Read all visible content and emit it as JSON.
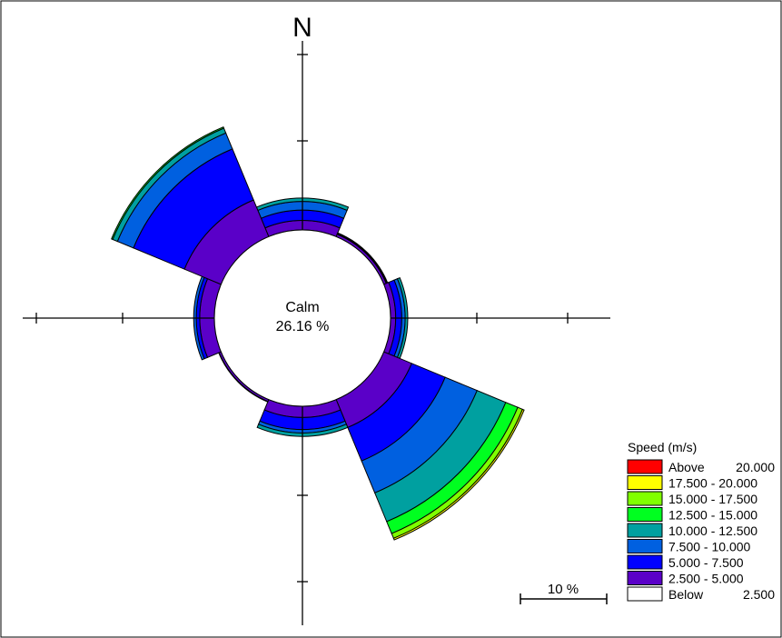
{
  "chart_data": {
    "type": "wind-rose",
    "north_label": "N",
    "calm": {
      "label": "Calm",
      "value_text": "26.16 %",
      "value": 26.16
    },
    "scale_label": "10 %",
    "legend": {
      "title": "Speed (m/s)",
      "bins": [
        {
          "label": "Above",
          "range": "20.000",
          "color": "#ff0000"
        },
        {
          "label": "17.500 - 20.000",
          "range": "",
          "color": "#ffff00"
        },
        {
          "label": "15.000 - 17.500",
          "range": "",
          "color": "#80ff00"
        },
        {
          "label": "12.500 - 15.000",
          "range": "",
          "color": "#00ff20"
        },
        {
          "label": "10.000 - 12.500",
          "range": "",
          "color": "#00a0a0"
        },
        {
          "label": "7.500 - 10.000",
          "range": "",
          "color": "#0060e0"
        },
        {
          "label": "5.000 - 7.500",
          "range": "",
          "color": "#0000ff"
        },
        {
          "label": "2.500 - 5.000",
          "range": "",
          "color": "#5a00c8"
        },
        {
          "label": "Below",
          "range": "2.500",
          "color": "#ffffff"
        }
      ]
    },
    "direction_sectors_deg": [
      0,
      45,
      90,
      135,
      180,
      225,
      270,
      315
    ],
    "sector_width_deg": 45,
    "series_colors": [
      "#5a00c8",
      "#0000ff",
      "#0060e0",
      "#00a0a0",
      "#00ff20",
      "#80ff00",
      "#ffff00",
      "#ff0000"
    ],
    "sectors": [
      {
        "direction": 0,
        "values": [
          1.1,
          1.2,
          1.0,
          0.4,
          0,
          0,
          0,
          0
        ]
      },
      {
        "direction": 45,
        "values": [
          0.3,
          0.1,
          0.05,
          0.02,
          0,
          0,
          0,
          0
        ]
      },
      {
        "direction": 90,
        "values": [
          0.6,
          0.7,
          0.4,
          0.3,
          0,
          0,
          0,
          0
        ]
      },
      {
        "direction": 135,
        "values": [
          3.5,
          4.2,
          4.0,
          3.6,
          1.5,
          0.6,
          0.2,
          0
        ]
      },
      {
        "direction": 180,
        "values": [
          1.3,
          1.4,
          0.4,
          0.4,
          0,
          0,
          0,
          0
        ]
      },
      {
        "direction": 225,
        "values": [
          0.25,
          0.05,
          0,
          0,
          0,
          0,
          0,
          0
        ]
      },
      {
        "direction": 270,
        "values": [
          1.7,
          0.4,
          0.3,
          0,
          0,
          0,
          0,
          0
        ]
      },
      {
        "direction": 315,
        "values": [
          4.6,
          6.4,
          2.0,
          0.6,
          0.15,
          0,
          0,
          0
        ]
      }
    ]
  }
}
